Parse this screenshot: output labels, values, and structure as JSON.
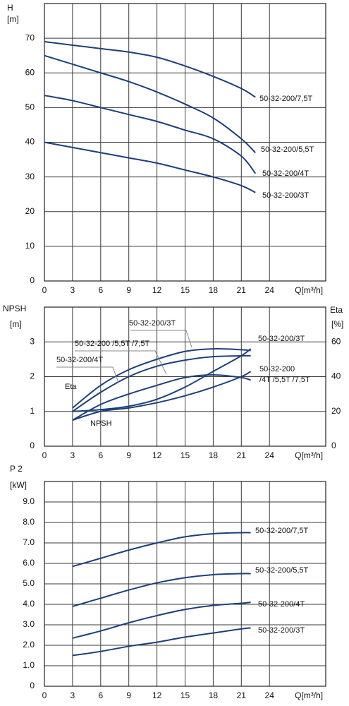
{
  "chart_data": [
    {
      "type": "line",
      "ylabel": "H",
      "yunit": "[m]",
      "xlabel": "Q[m³/h]",
      "xlim": [
        0,
        30
      ],
      "xticks": [
        0,
        3,
        6,
        9,
        12,
        15,
        18,
        21,
        24
      ],
      "ylim": [
        0,
        80
      ],
      "yticks": [
        0,
        10,
        20,
        30,
        40,
        50,
        60,
        70
      ],
      "grid": true,
      "x": [
        0,
        3,
        6,
        9,
        12,
        15,
        18,
        21,
        22.5
      ],
      "series": [
        {
          "name": "50-32-200/7,5T",
          "color": "#1c3f7c",
          "values": [
            69,
            68,
            67,
            66,
            64.5,
            62,
            59,
            55.5,
            53
          ]
        },
        {
          "name": "50-32-200/5,5T",
          "color": "#1c3f7c",
          "values": [
            65,
            62.5,
            60,
            57.5,
            54.5,
            51,
            47,
            41,
            37
          ]
        },
        {
          "name": "50-32-200/4T",
          "color": "#1c3f7c",
          "values": [
            53.5,
            52,
            50,
            48,
            46,
            43.5,
            41,
            36,
            31
          ]
        },
        {
          "name": "50-32-200/3T",
          "color": "#1c3f7c",
          "values": [
            40,
            38.5,
            37,
            35.5,
            34,
            32,
            30,
            27.5,
            25.5
          ]
        }
      ]
    },
    {
      "type": "line",
      "ylabel": "NPSH",
      "yunit": "[m]",
      "y2label": "Eta",
      "y2unit": "[%]",
      "xlabel": "Q[m³/h]",
      "xlim": [
        0,
        30
      ],
      "xticks": [
        0,
        3,
        6,
        9,
        12,
        15,
        18,
        21,
        24
      ],
      "ylim": [
        0,
        4
      ],
      "yticks": [
        0,
        1,
        2,
        3
      ],
      "y2lim": [
        0,
        80
      ],
      "y2ticks": [
        0,
        20,
        40,
        60
      ],
      "grid": true,
      "x": [
        3,
        6,
        9,
        12,
        15,
        18,
        21,
        22
      ],
      "series": [
        {
          "color": "#1c3f7c",
          "axis": "y2",
          "values": [
            22,
            35,
            44,
            50,
            54.5,
            56,
            55.5,
            55
          ]
        },
        {
          "color": "#1c3f7c",
          "axis": "y2",
          "values": [
            20,
            31,
            40,
            46,
            49.5,
            51.5,
            52,
            52
          ]
        },
        {
          "color": "#1c3f7c",
          "axis": "y2",
          "values": [
            15,
            24,
            30,
            35,
            39.5,
            41,
            39.5,
            38
          ]
        },
        {
          "color": "#1c3f7c",
          "values": [
            1.0,
            1.05,
            1.15,
            1.35,
            1.7,
            2.15,
            2.6,
            2.8
          ]
        },
        {
          "color": "#1c3f7c",
          "values": [
            0.75,
            1.0,
            1.1,
            1.25,
            1.45,
            1.7,
            2.0,
            2.15
          ]
        }
      ],
      "annotations": [
        "50-32-200/3T",
        "50-32-200 /5,5T /7,5T",
        "50-32-200/4T",
        "Eta",
        "NPSH",
        "50-32-200/3T",
        "50-32-200",
        "/4T /5,5T /7,5T"
      ]
    },
    {
      "type": "line",
      "ylabel": "P 2",
      "yunit": "[kW]",
      "xlabel": "Q[m³/h]",
      "xlim": [
        0,
        30
      ],
      "xticks": [
        0,
        3,
        6,
        9,
        12,
        15,
        18,
        21,
        24
      ],
      "ylim": [
        0,
        10
      ],
      "yticks": [
        0,
        {
          "value": 1,
          "label": "1.0"
        },
        {
          "value": 2,
          "label": "2.0"
        },
        {
          "value": 3,
          "label": "3.0"
        },
        {
          "value": 4,
          "label": "4.0"
        },
        {
          "value": 5,
          "label": "5.0"
        },
        {
          "value": 6,
          "label": "6.0"
        },
        {
          "value": 7,
          "label": "7.0"
        },
        {
          "value": 8,
          "label": "8.0"
        },
        {
          "value": 9,
          "label": "9.0"
        }
      ],
      "grid": true,
      "x": [
        3,
        6,
        9,
        12,
        15,
        18,
        21,
        22
      ],
      "series": [
        {
          "name": "50-32-200/7,5T",
          "color": "#1c3f7c",
          "values": [
            5.85,
            6.25,
            6.65,
            7.0,
            7.3,
            7.45,
            7.5,
            7.5
          ]
        },
        {
          "name": "50-32-200/5,5T",
          "color": "#1c3f7c",
          "values": [
            3.9,
            4.3,
            4.7,
            5.05,
            5.3,
            5.45,
            5.5,
            5.5
          ]
        },
        {
          "name": "50-32-200/4T",
          "color": "#1c3f7c",
          "values": [
            2.35,
            2.7,
            3.1,
            3.45,
            3.75,
            3.95,
            4.05,
            4.1
          ]
        },
        {
          "name": "50-32-200/3T",
          "color": "#1c3f7c",
          "values": [
            1.5,
            1.7,
            1.95,
            2.15,
            2.4,
            2.6,
            2.8,
            2.85
          ]
        }
      ]
    }
  ]
}
